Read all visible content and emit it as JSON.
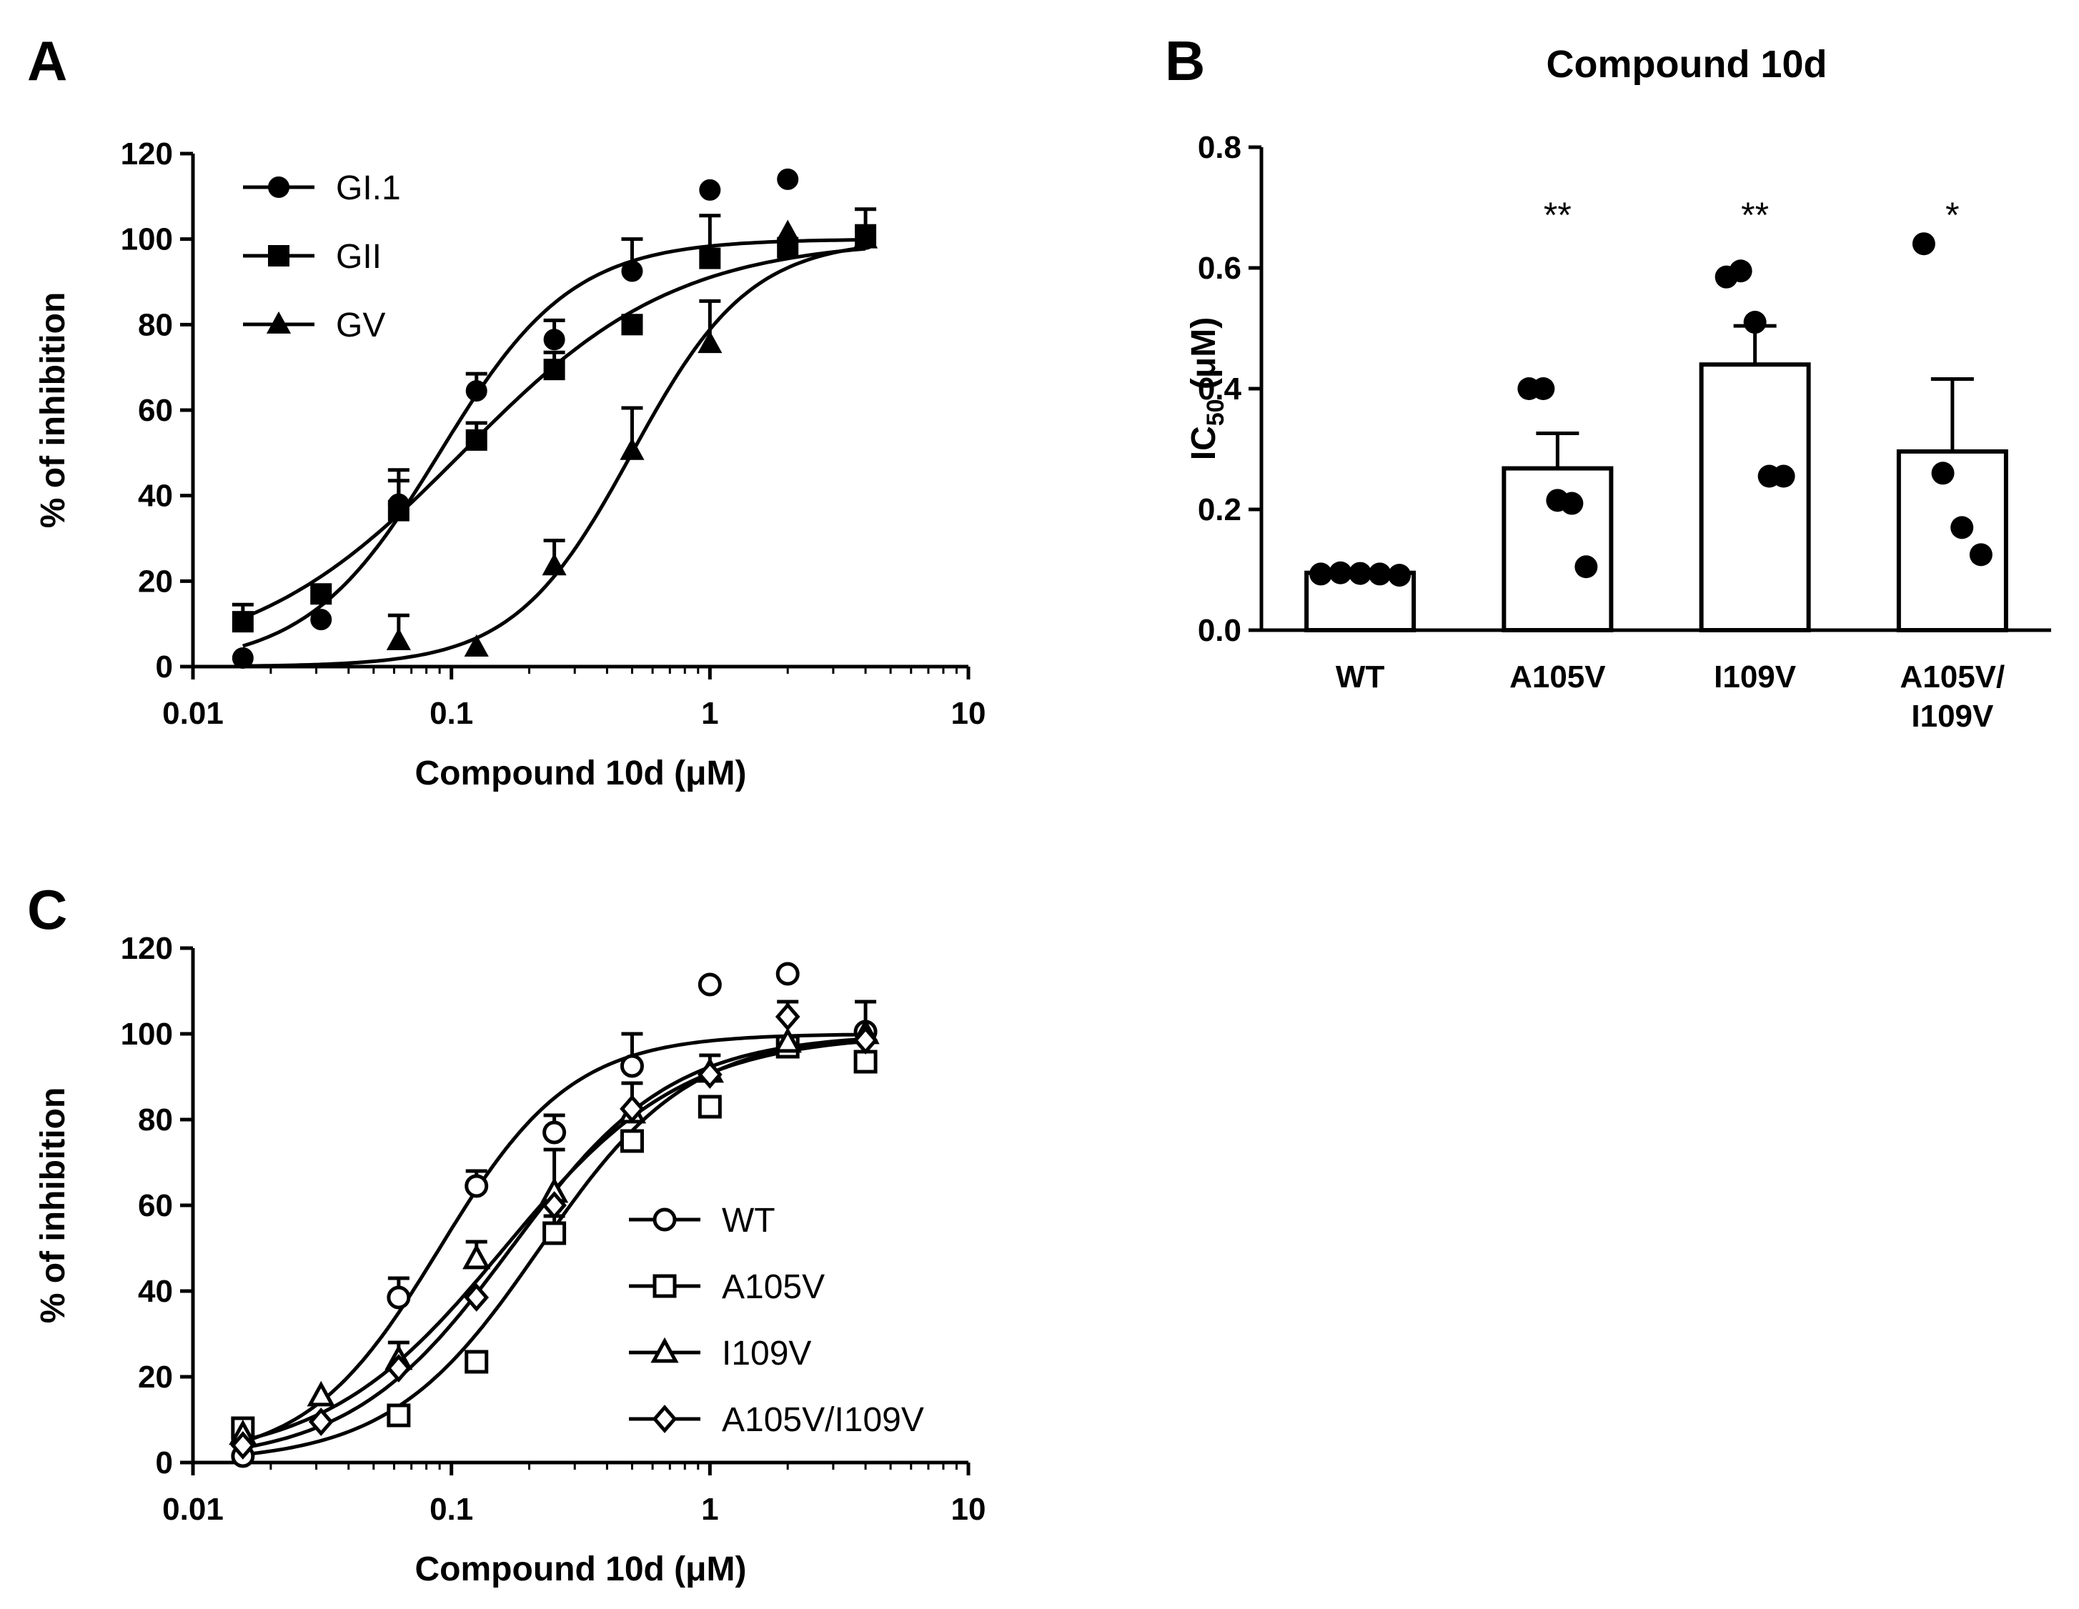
{
  "chart_data": [
    {
      "panel": "A",
      "type": "line",
      "xlabel": "Compound 10d (μM)",
      "ylabel": "% of inhibition",
      "xscale": "log",
      "xlim": [
        0.01,
        10
      ],
      "ylim": [
        0,
        120
      ],
      "xticks": [
        0.01,
        0.1,
        1,
        10
      ],
      "xtick_labels": [
        "0.01",
        "0.1",
        "1",
        "10"
      ],
      "yticks": [
        0,
        20,
        40,
        60,
        80,
        100,
        120
      ],
      "ytick_labels": [
        "0",
        "20",
        "40",
        "60",
        "80",
        "100",
        "120"
      ],
      "legend_position": "top-left",
      "series": [
        {
          "name": "GI.1",
          "marker": "circle",
          "filled": true,
          "x": [
            0.0156,
            0.0313,
            0.0625,
            0.125,
            0.25,
            0.5,
            1,
            2,
            4
          ],
          "y": [
            2,
            11,
            38,
            64.5,
            76.5,
            92.5,
            111.5,
            114,
            100
          ],
          "err": [
            0,
            0,
            8,
            4,
            4.5,
            7.5,
            0,
            0,
            0
          ],
          "fit_ic50": 0.09,
          "fit_hill": 1.7
        },
        {
          "name": "GII",
          "marker": "square",
          "filled": true,
          "x": [
            0.0156,
            0.0313,
            0.0625,
            0.125,
            0.25,
            0.5,
            1,
            2,
            4
          ],
          "y": [
            10.5,
            17,
            36.5,
            53,
            69.5,
            80,
            95.5,
            98,
            101
          ],
          "err": [
            4,
            0,
            7,
            4,
            4,
            2,
            10,
            0,
            6
          ],
          "fit_ic50": 0.11,
          "fit_hill": 1.05
        },
        {
          "name": "GV",
          "marker": "triangle",
          "filled": true,
          "x": [
            0.0625,
            0.125,
            0.25,
            0.5,
            1,
            2,
            4
          ],
          "y": [
            6,
            4.5,
            23.5,
            50.5,
            75.5,
            101.5,
            100
          ],
          "err": [
            6,
            0,
            6,
            10,
            10,
            0,
            0
          ],
          "fit_ic50": 0.5,
          "fit_hill": 1.9
        }
      ]
    },
    {
      "panel": "B",
      "type": "bar",
      "title": "Compound 10d",
      "ylabel": "IC",
      "ylabel_sub": "50",
      "ylabel_suffix": " (μM)",
      "categories": [
        "WT",
        "A105V",
        "I109V",
        "A105V/ I109V"
      ],
      "category_lines": [
        [
          "WT"
        ],
        [
          "A105V"
        ],
        [
          "I109V"
        ],
        [
          "A105V/",
          "I109V"
        ]
      ],
      "values": [
        0.095,
        0.268,
        0.44,
        0.296
      ],
      "sem": [
        0.004,
        0.058,
        0.064,
        0.12
      ],
      "points": [
        [
          0.093,
          0.095,
          0.094,
          0.093,
          0.091
        ],
        [
          0.4,
          0.4,
          0.215,
          0.21,
          0.105
        ],
        [
          0.585,
          0.595,
          0.51,
          0.255,
          0.255
        ],
        [
          0.64,
          0.26,
          0.17,
          0.125
        ]
      ],
      "significance": [
        "",
        "**",
        "**",
        "*"
      ],
      "ylim": [
        0,
        0.8
      ],
      "yticks": [
        0,
        0.2,
        0.4,
        0.6,
        0.8
      ],
      "ytick_labels": [
        "0.0",
        "0.2",
        "0.4",
        "0.6",
        "0.8"
      ]
    },
    {
      "panel": "C",
      "type": "line",
      "xlabel": "Compound 10d (μM)",
      "ylabel": "% of inhibition",
      "xscale": "log",
      "xlim": [
        0.01,
        10
      ],
      "ylim": [
        0,
        120
      ],
      "xticks": [
        0.01,
        0.1,
        1,
        10
      ],
      "xtick_labels": [
        "0.01",
        "0.1",
        "1",
        "10"
      ],
      "yticks": [
        0,
        20,
        40,
        60,
        80,
        100,
        120
      ],
      "ytick_labels": [
        "0",
        "20",
        "40",
        "60",
        "80",
        "100",
        "120"
      ],
      "legend_position": "bottom-right",
      "series": [
        {
          "name": "WT",
          "marker": "circle",
          "filled": false,
          "x": [
            0.0156,
            0.0625,
            0.125,
            0.25,
            0.5,
            1,
            2,
            4
          ],
          "y": [
            1.5,
            38.5,
            64.5,
            77,
            92.5,
            111.5,
            114,
            100.5
          ],
          "err": [
            0,
            4.5,
            3.5,
            4,
            7.5,
            0,
            0,
            7
          ],
          "fit_ic50": 0.09,
          "fit_hill": 1.7
        },
        {
          "name": "A105V",
          "marker": "square",
          "filled": false,
          "x": [
            0.0156,
            0.0625,
            0.125,
            0.25,
            0.5,
            1,
            2,
            4
          ],
          "y": [
            8,
            11,
            23.5,
            53.5,
            75,
            83,
            97,
            93.5
          ],
          "err": [
            0,
            0,
            0,
            4,
            0,
            0,
            0,
            0
          ],
          "fit_ic50": 0.22,
          "fit_hill": 1.5
        },
        {
          "name": "I109V",
          "marker": "triangle",
          "filled": false,
          "x": [
            0.0156,
            0.0313,
            0.0625,
            0.125,
            0.25,
            0.5,
            1,
            2,
            4
          ],
          "y": [
            6.5,
            15.5,
            24,
            47.5,
            63,
            81.5,
            91,
            98,
            100
          ],
          "err": [
            0,
            0,
            4,
            4,
            10,
            7,
            4,
            0,
            0
          ],
          "fit_ic50": 0.16,
          "fit_hill": 1.25
        },
        {
          "name": "A105V/I109V",
          "marker": "diamond",
          "filled": false,
          "x": [
            0.0156,
            0.0313,
            0.0625,
            0.125,
            0.25,
            0.5,
            1,
            2,
            4
          ],
          "y": [
            4,
            9.5,
            22,
            38.5,
            60,
            82.5,
            90.5,
            104,
            98.5
          ],
          "err": [
            0,
            0,
            0,
            0,
            0,
            0,
            0,
            3.5,
            0
          ],
          "fit_ic50": 0.17,
          "fit_hill": 1.4
        }
      ]
    }
  ]
}
